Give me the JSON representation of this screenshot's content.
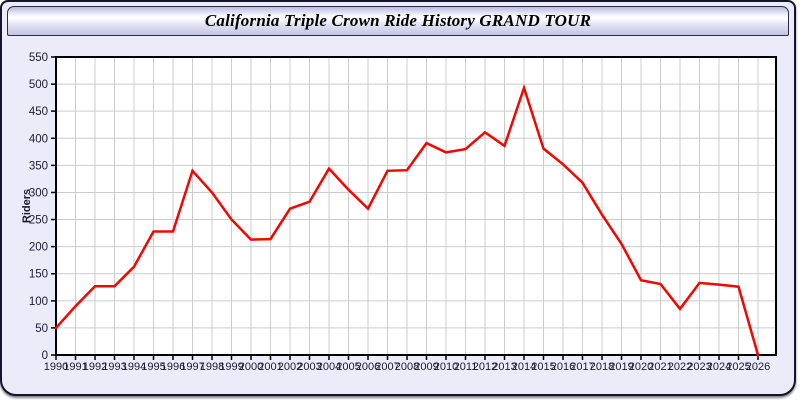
{
  "header": {
    "title": "California Triple Crown Ride History GRAND TOUR"
  },
  "chart_data": {
    "type": "line",
    "title": "California Triple Crown Ride History GRAND TOUR",
    "xlabel": "",
    "ylabel": "Riders",
    "x": [
      1990,
      1991,
      1992,
      1993,
      1994,
      1995,
      1996,
      1997,
      1998,
      1999,
      2000,
      2001,
      2002,
      2003,
      2004,
      2005,
      2006,
      2007,
      2008,
      2009,
      2010,
      2011,
      2012,
      2013,
      2014,
      2015,
      2016,
      2017,
      2018,
      2019,
      2020,
      2021,
      2022,
      2023,
      2024,
      2025,
      2026
    ],
    "values": [
      50,
      90,
      127,
      127,
      163,
      228,
      228,
      340,
      300,
      250,
      213,
      214,
      270,
      283,
      344,
      305,
      270,
      340,
      341,
      391,
      374,
      380,
      411,
      386,
      493,
      381,
      352,
      318,
      259,
      205,
      138,
      131,
      85,
      133,
      130,
      126,
      0
    ],
    "series_name": "Riders",
    "ylim": [
      0,
      550
    ],
    "ytick_step": 50,
    "grid": true,
    "legend": "none"
  },
  "colors": {
    "line": "#ee0800",
    "plot_bg": "#ffffff",
    "grid": "#cccccc",
    "axis": "#000000",
    "tick_text": "#1c1c30",
    "page_bg": "#ebebfa"
  }
}
